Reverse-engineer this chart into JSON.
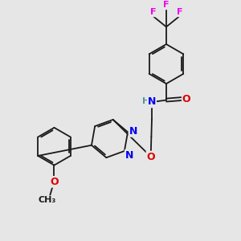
{
  "background_color": "#e6e6e6",
  "bond_color": "#1a1a1a",
  "atom_colors": {
    "N": "#0000ee",
    "O": "#dd0000",
    "F": "#ee00ee",
    "H": "#4a9a9a",
    "C": "#1a1a1a"
  },
  "fig_size": [
    3.0,
    3.0
  ],
  "dpi": 100
}
